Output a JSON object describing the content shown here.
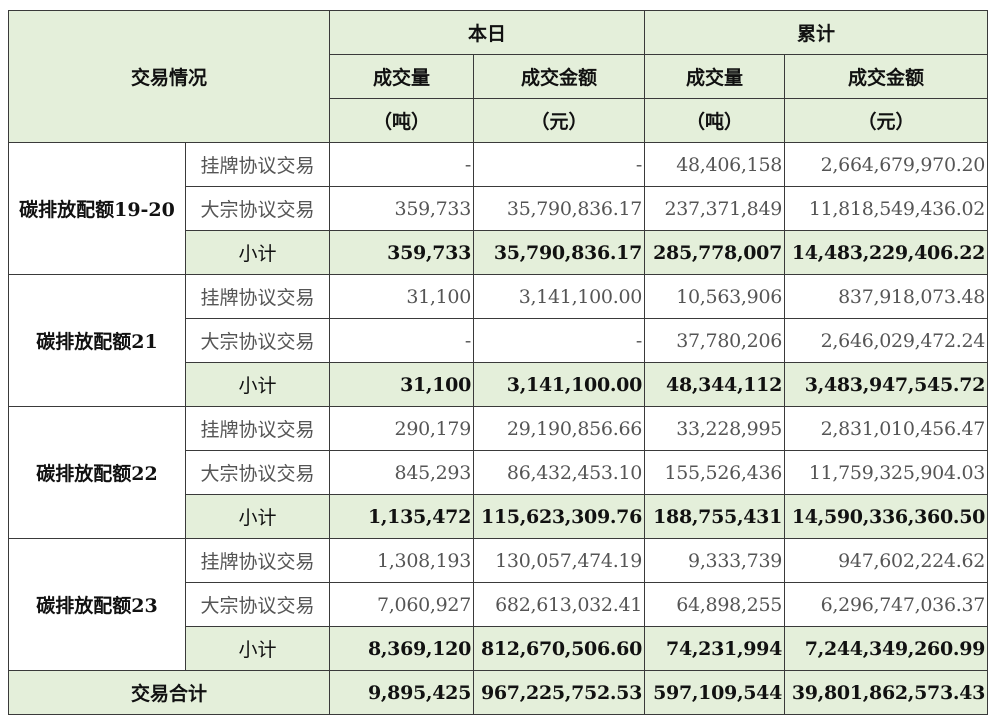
{
  "headers": {
    "trade_info": "交易情况",
    "today": "本日",
    "cumulative": "累计",
    "volume": "成交量",
    "volume_unit": "（吨）",
    "amount": "成交金额",
    "amount_unit": "（元）"
  },
  "groups": [
    {
      "name": "碳排放配额19-20",
      "rows": [
        {
          "type": "挂牌协议交易",
          "today_volume": "-",
          "today_amount": "-",
          "cum_volume": "48,406,158",
          "cum_amount": "2,664,679,970.20"
        },
        {
          "type": "大宗协议交易",
          "today_volume": "359,733",
          "today_amount": "35,790,836.17",
          "cum_volume": "237,371,849",
          "cum_amount": "11,818,549,436.02"
        }
      ],
      "subtotal": {
        "label": "小计",
        "today_volume": "359,733",
        "today_amount": "35,790,836.17",
        "cum_volume": "285,778,007",
        "cum_amount": "14,483,229,406.22"
      }
    },
    {
      "name": "碳排放配额21",
      "rows": [
        {
          "type": "挂牌协议交易",
          "today_volume": "31,100",
          "today_amount": "3,141,100.00",
          "cum_volume": "10,563,906",
          "cum_amount": "837,918,073.48"
        },
        {
          "type": "大宗协议交易",
          "today_volume": "-",
          "today_amount": "-",
          "cum_volume": "37,780,206",
          "cum_amount": "2,646,029,472.24"
        }
      ],
      "subtotal": {
        "label": "小计",
        "today_volume": "31,100",
        "today_amount": "3,141,100.00",
        "cum_volume": "48,344,112",
        "cum_amount": "3,483,947,545.72"
      }
    },
    {
      "name": "碳排放配额22",
      "rows": [
        {
          "type": "挂牌协议交易",
          "today_volume": "290,179",
          "today_amount": "29,190,856.66",
          "cum_volume": "33,228,995",
          "cum_amount": "2,831,010,456.47"
        },
        {
          "type": "大宗协议交易",
          "today_volume": "845,293",
          "today_amount": "86,432,453.10",
          "cum_volume": "155,526,436",
          "cum_amount": "11,759,325,904.03"
        }
      ],
      "subtotal": {
        "label": "小计",
        "today_volume": "1,135,472",
        "today_amount": "115,623,309.76",
        "cum_volume": "188,755,431",
        "cum_amount": "14,590,336,360.50"
      }
    },
    {
      "name": "碳排放配额23",
      "rows": [
        {
          "type": "挂牌协议交易",
          "today_volume": "1,308,193",
          "today_amount": "130,057,474.19",
          "cum_volume": "9,333,739",
          "cum_amount": "947,602,224.62"
        },
        {
          "type": "大宗协议交易",
          "today_volume": "7,060,927",
          "today_amount": "682,613,032.41",
          "cum_volume": "64,898,255",
          "cum_amount": "6,296,747,036.37"
        }
      ],
      "subtotal": {
        "label": "小计",
        "today_volume": "8,369,120",
        "today_amount": "812,670,506.60",
        "cum_volume": "74,231,994",
        "cum_amount": "7,244,349,260.99"
      }
    }
  ],
  "total": {
    "label": "交易合计",
    "today_volume": "9,895,425",
    "today_amount": "967,225,752.53",
    "cum_volume": "597,109,544",
    "cum_amount": "39,801,862,573.43"
  },
  "colors": {
    "header_green": "#e4efda",
    "border": "#3a3a3a"
  }
}
